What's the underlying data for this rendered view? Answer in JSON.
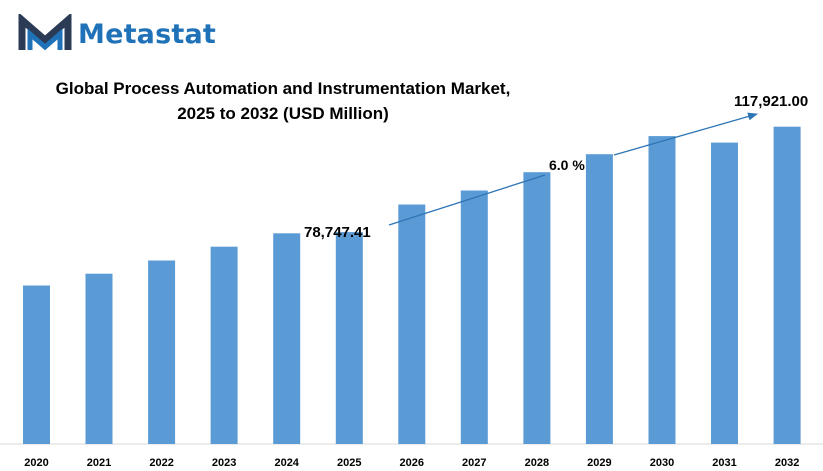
{
  "brand": {
    "name": "Metastat",
    "color": "#1f72b8",
    "icon": "metastat-m-logo-icon"
  },
  "chart_data": {
    "type": "bar",
    "title_lines": [
      "Global Process Automation and Instrumentation Market,",
      "2025 to 2032 (USD Million)"
    ],
    "categories": [
      "2020",
      "2021",
      "2022",
      "2023",
      "2024",
      "2025",
      "2026",
      "2027",
      "2028",
      "2029",
      "2030",
      "2031",
      "2032"
    ],
    "values": [
      58900,
      63300,
      68200,
      73300,
      78300,
      78747.41,
      89000,
      94200,
      101000,
      107700,
      114400,
      112000,
      117921.0
    ],
    "ylim": [
      0,
      123000
    ],
    "grid": false,
    "bar_color": "#5b9bd5",
    "annotations": {
      "start_label": "78,747.41",
      "end_label": "117,921.00",
      "cagr_label": "6.0 %"
    }
  }
}
